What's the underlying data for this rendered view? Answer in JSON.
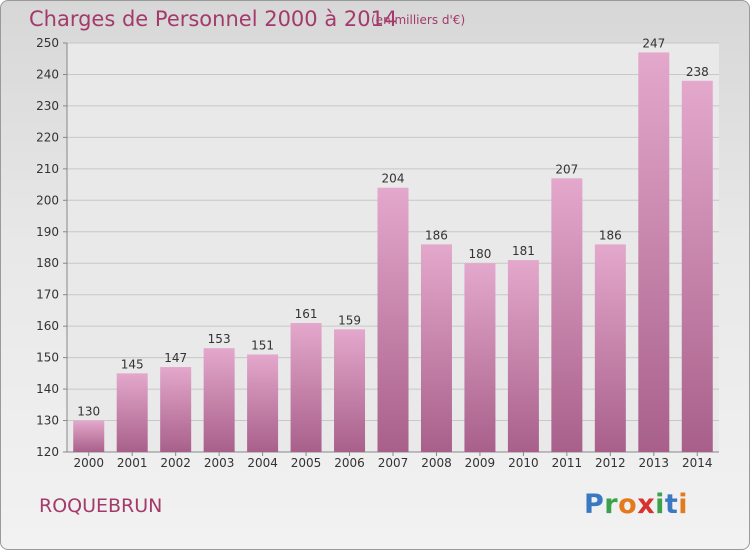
{
  "header": {
    "title": "Charges de Personnel 2000 à 2014",
    "units": "(en milliers d'€)"
  },
  "footer": {
    "town": "ROQUEBRUN",
    "logo": "Proxiti"
  },
  "colors": {
    "title": "#a33a6b",
    "bar_top": "#e4a8cc",
    "bar_bottom": "#a8608a",
    "grid": "#c8c8c8",
    "logo_letters": [
      "#3a78c2",
      "#3aa24a",
      "#e37b1e",
      "#d8322e",
      "#3aa24a",
      "#3a78c2",
      "#e37b1e"
    ]
  },
  "chart_data": {
    "type": "bar",
    "categories": [
      "2000",
      "2001",
      "2002",
      "2003",
      "2004",
      "2005",
      "2006",
      "2007",
      "2008",
      "2009",
      "2010",
      "2011",
      "2012",
      "2013",
      "2014"
    ],
    "values": [
      130,
      145,
      147,
      153,
      151,
      161,
      159,
      204,
      186,
      180,
      181,
      207,
      186,
      247,
      238
    ],
    "title": "Charges de Personnel 2000 à 2014",
    "ylim": [
      120,
      250
    ],
    "yticks": [
      120,
      130,
      140,
      150,
      160,
      170,
      180,
      190,
      200,
      210,
      220,
      230,
      240,
      250
    ],
    "grid": true,
    "data_labels": true
  }
}
